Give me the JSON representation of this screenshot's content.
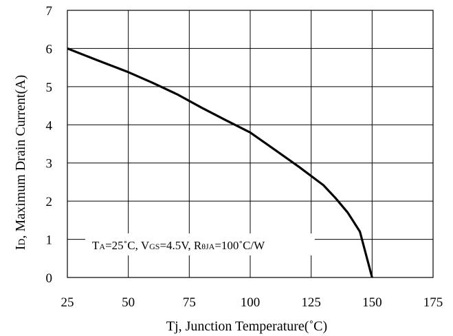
{
  "chart_data": {
    "type": "line",
    "xlabel": "Tj, Junction Temperature(˚C)",
    "ylabel_main": "I",
    "ylabel_sub": "D",
    "ylabel_rest": ", Maximum Drain Current(A)",
    "xlim": [
      25,
      175
    ],
    "ylim": [
      0,
      7
    ],
    "xticks": [
      "25",
      "50",
      "75",
      "100",
      "125",
      "150",
      "175"
    ],
    "yticks": [
      "0",
      "1",
      "2",
      "3",
      "4",
      "5",
      "6",
      "7"
    ],
    "grid": true,
    "series": [
      {
        "x": [
          25,
          37,
          50,
          60,
          70,
          80,
          90,
          100,
          110,
          120,
          130,
          135,
          140,
          145,
          150
        ],
        "y": [
          6.0,
          5.7,
          5.38,
          5.1,
          4.8,
          4.45,
          4.12,
          3.8,
          3.35,
          2.9,
          2.42,
          2.08,
          1.7,
          1.2,
          0.0
        ]
      }
    ],
    "annotation": {
      "t": "T",
      "t_sub": "A",
      "t_rest": "=25˚C, V",
      "v_sub": "GS",
      "v_rest": "=4.5V, R",
      "r_sub": "θJA",
      "r_rest": "=100˚C/W"
    }
  }
}
